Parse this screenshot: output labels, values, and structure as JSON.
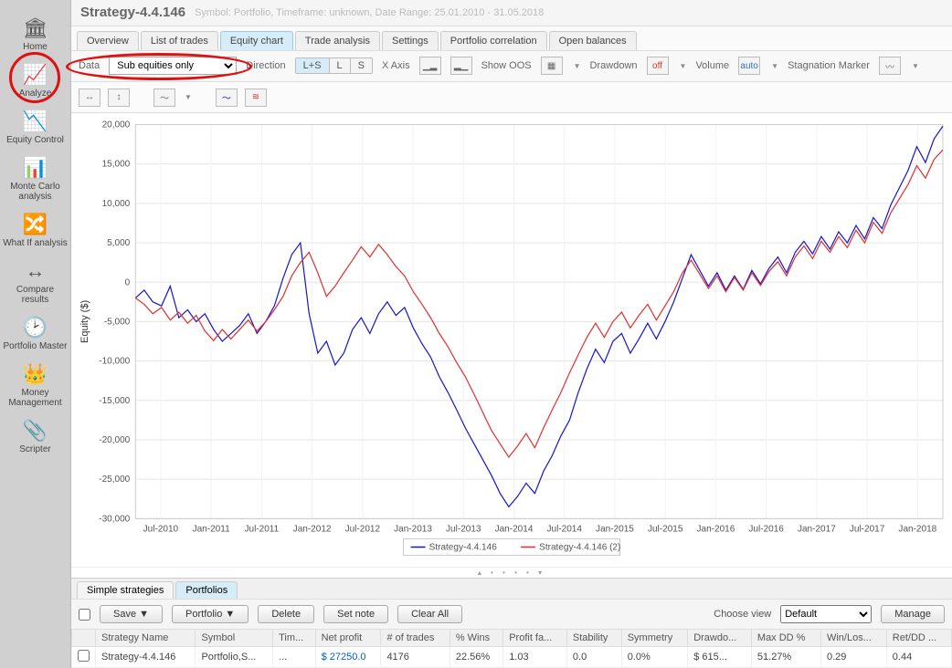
{
  "header": {
    "title": "Strategy-4.4.146",
    "subtitle": "Symbol: Portfolio, Timeframe: unknown, Date Range: 25.01.2010 - 31.05.2018"
  },
  "sidebar": {
    "items": [
      {
        "label": "Home",
        "icon": "🏛"
      },
      {
        "label": "Analyze",
        "icon": "📈"
      },
      {
        "label": "Equity Control",
        "icon": "📉"
      },
      {
        "label": "Monte Carlo analysis",
        "icon": "📊"
      },
      {
        "label": "What If analysis",
        "icon": "🔀"
      },
      {
        "label": "Compare results",
        "icon": "↔"
      },
      {
        "label": "Portfolio Master",
        "icon": "🕑"
      },
      {
        "label": "Money Management",
        "icon": "👑"
      },
      {
        "label": "Scripter",
        "icon": "📎"
      }
    ]
  },
  "tabs": [
    "Overview",
    "List of trades",
    "Equity chart",
    "Trade analysis",
    "Settings",
    "Portfolio correlation",
    "Open balances"
  ],
  "active_tab": 2,
  "toolbar": {
    "data_label": "Data",
    "data_value": "Sub equities only",
    "direction_label": "Direction",
    "direction_opts": [
      "L+S",
      "L",
      "S"
    ],
    "xaxis_label": "X Axis",
    "show_oos_label": "Show OOS",
    "drawdown_label": "Drawdown",
    "drawdown_badge": "off",
    "volume_label": "Volume",
    "volume_badge": "auto",
    "stagnation_label": "Stagnation Marker"
  },
  "chart": {
    "y_title": "Equity ($)",
    "y_min": -30000,
    "y_max": 20000,
    "y_step": 5000,
    "y_ticks": [
      "-30,000",
      "-25,000",
      "-20,000",
      "-15,000",
      "-10,000",
      "-5,000",
      "0",
      "5,000",
      "10,000",
      "15,000",
      "20,000"
    ],
    "x_labels": [
      "Jul-2010",
      "Jan-2011",
      "Jul-2011",
      "Jan-2012",
      "Jul-2012",
      "Jan-2013",
      "Jul-2013",
      "Jan-2014",
      "Jul-2014",
      "Jan-2015",
      "Jul-2015",
      "Jan-2016",
      "Jul-2016",
      "Jan-2017",
      "Jul-2017",
      "Jan-2018"
    ],
    "series": [
      {
        "name": "Strategy-4.4.146",
        "color": "#1515d0",
        "points": [
          -2000,
          -1000,
          -2500,
          -3000,
          -500,
          -4500,
          -3500,
          -5000,
          -4000,
          -6000,
          -7500,
          -6500,
          -5500,
          -4000,
          -6500,
          -5000,
          -3000,
          500,
          3500,
          5000,
          -4000,
          -9000,
          -7500,
          -10500,
          -9000,
          -6000,
          -4500,
          -6500,
          -4000,
          -2500,
          -4200,
          -3200,
          -5800,
          -7800,
          -9500,
          -12000,
          -14000,
          -16200,
          -18500,
          -20500,
          -22500,
          -24500,
          -26800,
          -28500,
          -27200,
          -25500,
          -26800,
          -24000,
          -22000,
          -19500,
          -17500,
          -14000,
          -11000,
          -8500,
          -10200,
          -7500,
          -6500,
          -9000,
          -7200,
          -5200,
          -7200,
          -5000,
          -2500,
          500,
          3500,
          1500,
          -500,
          1200,
          -1000,
          800,
          -900,
          1500,
          -200,
          1800,
          3200,
          1200,
          3800,
          5200,
          3600,
          5800,
          4200,
          6400,
          5000,
          7200,
          5500,
          8200,
          6800,
          9800,
          12000,
          14200,
          17200,
          15200,
          18200,
          19800
        ]
      },
      {
        "name": "Strategy-4.4.146 (2)",
        "color": "#e03030",
        "points": [
          -2000,
          -2800,
          -4000,
          -3200,
          -4800,
          -3800,
          -5200,
          -4200,
          -6200,
          -7400,
          -6000,
          -7200,
          -6000,
          -4800,
          -6200,
          -5000,
          -3500,
          -1800,
          800,
          2500,
          3800,
          1200,
          -1800,
          -500,
          1200,
          2800,
          4500,
          3200,
          4800,
          3500,
          2000,
          800,
          -1200,
          -2800,
          -4500,
          -6500,
          -8200,
          -10200,
          -12000,
          -14200,
          -16500,
          -18800,
          -20500,
          -22200,
          -20800,
          -19200,
          -21000,
          -18500,
          -16200,
          -14000,
          -11500,
          -9200,
          -7000,
          -5200,
          -7000,
          -5000,
          -3800,
          -5800,
          -4200,
          -2800,
          -4800,
          -3000,
          -1200,
          1200,
          2800,
          1000,
          -800,
          800,
          -1200,
          600,
          -1000,
          1200,
          -400,
          1400,
          2600,
          800,
          3200,
          4600,
          3000,
          5200,
          3800,
          5800,
          4400,
          6600,
          5000,
          7600,
          6200,
          8800,
          10600,
          12400,
          14800,
          13200,
          15600,
          16800
        ]
      }
    ]
  },
  "bottom_tabs": [
    "Simple strategies",
    "Portfolios"
  ],
  "active_bottom_tab": 1,
  "actions": {
    "save": "Save ▼",
    "portfolio": "Portfolio ▼",
    "delete": "Delete",
    "set_note": "Set note",
    "clear_all": "Clear All",
    "choose_view": "Choose view",
    "view_value": "Default",
    "manage": "Manage"
  },
  "table": {
    "columns": [
      "Strategy Name",
      "Symbol",
      "Tim...",
      "Net profit",
      "# of trades",
      "% Wins",
      "Profit fa...",
      "Stability",
      "Symmetry",
      "Drawdo...",
      "Max DD %",
      "Win/Los...",
      "Ret/DD ..."
    ],
    "rows": [
      [
        "Strategy-4.4.146",
        "Portfolio,S...",
        "...",
        "$ 27250.0",
        "4176",
        "22.56%",
        "1.03",
        "0.0",
        "0.0%",
        "$ 615...",
        "51.27%",
        "0.29",
        "0.44"
      ]
    ]
  },
  "colors": {
    "blue": "#1515d0",
    "red": "#e03030",
    "marker": "#e01010",
    "sidebar": "#d0d0d0",
    "tab_active": "#d6ecf8"
  }
}
